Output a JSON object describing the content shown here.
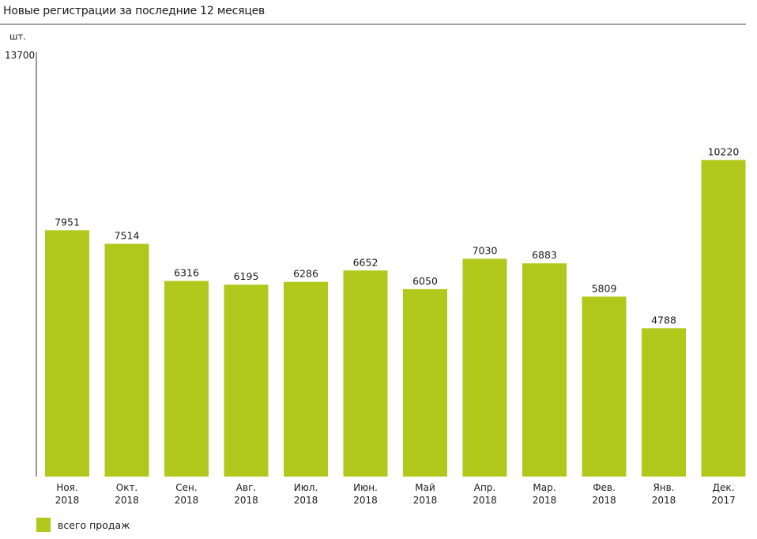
{
  "header": {
    "title": "Новые регистрации за последние 12 месяцев"
  },
  "chart_data": {
    "type": "bar",
    "title": "Новые регистрации за последние 12 месяцев",
    "ylabel": "шт.",
    "ylim": [
      0,
      13700
    ],
    "y_ticks": [
      "13700"
    ],
    "categories": [
      [
        "Ноя.",
        "2018"
      ],
      [
        "Окт.",
        "2018"
      ],
      [
        "Сен.",
        "2018"
      ],
      [
        "Авг.",
        "2018"
      ],
      [
        "Июл.",
        "2018"
      ],
      [
        "Июн.",
        "2018"
      ],
      [
        "Май",
        "2018"
      ],
      [
        "Апр.",
        "2018"
      ],
      [
        "Мар.",
        "2018"
      ],
      [
        "Фев.",
        "2018"
      ],
      [
        "Янв.",
        "2018"
      ],
      [
        "Дек.",
        "2017"
      ]
    ],
    "series": [
      {
        "name": "всего продаж",
        "color": "#b0c81c",
        "values": [
          7951,
          7514,
          6316,
          6195,
          6286,
          6652,
          6050,
          7030,
          6883,
          5809,
          4788,
          10220
        ]
      }
    ],
    "legend": "bottom-left",
    "grid": false
  }
}
